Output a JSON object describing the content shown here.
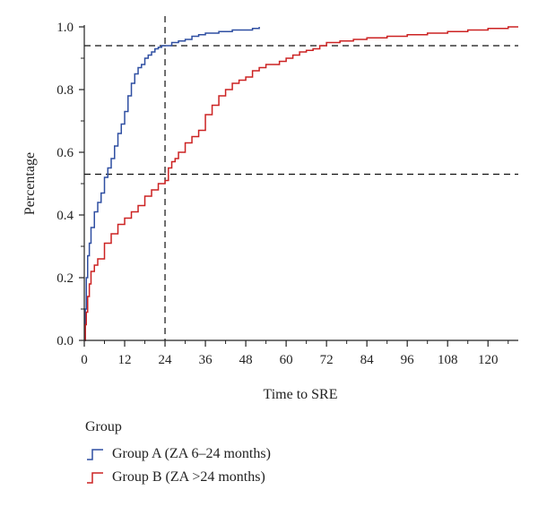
{
  "chart_data": {
    "type": "line",
    "step": true,
    "xlabel": "Time to SRE",
    "ylabel": "Percentage",
    "xlim": [
      0,
      129
    ],
    "ylim": [
      0,
      1.0
    ],
    "xticks": [
      0,
      12,
      24,
      36,
      48,
      60,
      72,
      84,
      96,
      108,
      120
    ],
    "xtick_labels": [
      "0",
      "12",
      "24",
      "36",
      "48",
      "60",
      "72",
      "84",
      "96",
      "108",
      "120"
    ],
    "yticks": [
      0.0,
      0.2,
      0.4,
      0.6,
      0.8,
      1.0
    ],
    "ytick_labels": [
      "0.0",
      "0.2",
      "0.4",
      "0.6",
      "0.8",
      "1.0"
    ],
    "grid": false,
    "reference_lines": [
      {
        "orientation": "horizontal",
        "y": 0.94,
        "style": "dashed"
      },
      {
        "orientation": "horizontal",
        "y": 0.53,
        "style": "dashed"
      },
      {
        "orientation": "vertical",
        "x": 24,
        "style": "dashed"
      }
    ],
    "legend": {
      "title": "Group",
      "placement": "bottom-left"
    },
    "series": [
      {
        "name": "Group A (ZA 6–24 months)",
        "color": "#2f4fa2",
        "x": [
          0,
          0.3,
          0.6,
          1,
          1.5,
          2,
          3,
          4,
          5,
          6,
          7,
          8,
          9,
          10,
          11,
          12,
          13,
          14,
          15,
          16,
          17,
          18,
          19,
          20,
          21,
          22,
          23,
          24,
          26,
          28,
          30,
          32,
          34,
          36,
          40,
          44,
          48,
          50,
          52
        ],
        "y": [
          0.0,
          0.1,
          0.2,
          0.27,
          0.31,
          0.36,
          0.41,
          0.44,
          0.47,
          0.52,
          0.55,
          0.58,
          0.62,
          0.66,
          0.69,
          0.73,
          0.78,
          0.82,
          0.85,
          0.87,
          0.88,
          0.9,
          0.91,
          0.92,
          0.93,
          0.935,
          0.94,
          0.94,
          0.95,
          0.955,
          0.96,
          0.97,
          0.975,
          0.98,
          0.985,
          0.99,
          0.99,
          0.995,
          1.0
        ]
      },
      {
        "name": "Group B (ZA >24 months)",
        "color": "#cc2222",
        "x": [
          0,
          0.3,
          0.6,
          1,
          1.5,
          2,
          3,
          4,
          6,
          8,
          10,
          12,
          14,
          16,
          18,
          20,
          22,
          24,
          25,
          26,
          27,
          28,
          30,
          32,
          34,
          36,
          38,
          40,
          42,
          44,
          46,
          48,
          50,
          52,
          54,
          56,
          58,
          60,
          62,
          64,
          66,
          68,
          70,
          72,
          76,
          80,
          84,
          90,
          96,
          102,
          108,
          114,
          120,
          126,
          129
        ],
        "y": [
          0.0,
          0.05,
          0.09,
          0.14,
          0.18,
          0.22,
          0.24,
          0.26,
          0.31,
          0.34,
          0.37,
          0.39,
          0.41,
          0.43,
          0.46,
          0.48,
          0.5,
          0.51,
          0.55,
          0.57,
          0.58,
          0.6,
          0.63,
          0.65,
          0.67,
          0.72,
          0.75,
          0.78,
          0.8,
          0.82,
          0.83,
          0.84,
          0.86,
          0.87,
          0.88,
          0.88,
          0.89,
          0.9,
          0.91,
          0.92,
          0.925,
          0.93,
          0.94,
          0.95,
          0.955,
          0.96,
          0.965,
          0.97,
          0.975,
          0.98,
          0.985,
          0.99,
          0.995,
          1.0,
          1.0
        ]
      }
    ]
  }
}
